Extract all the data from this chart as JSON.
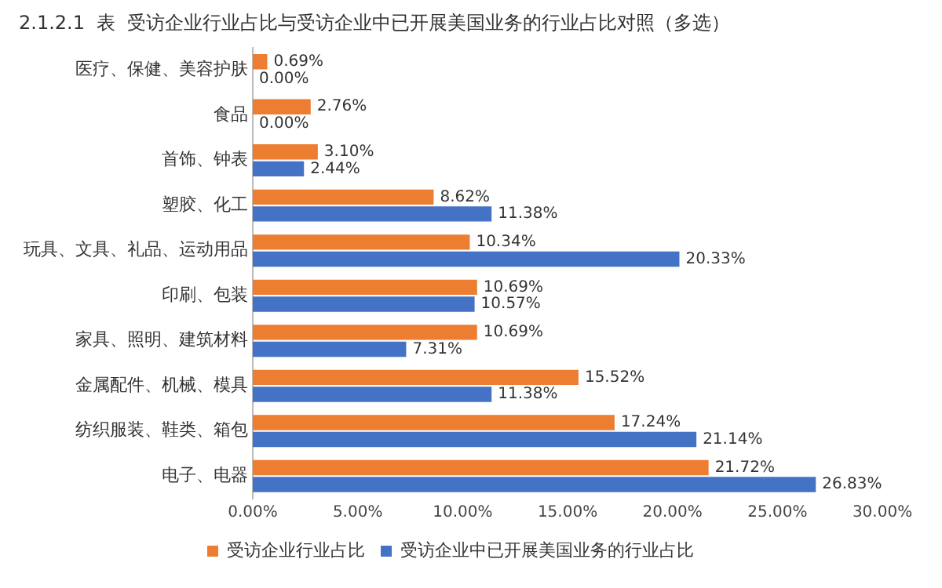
{
  "chart_data": {
    "type": "bar",
    "orientation": "horizontal",
    "title": "2.1.2.1  表  受访企业行业占比与受访企业中已开展美国业务的行业占比对照（多选）",
    "categories": [
      "医疗、保健、美容护肤",
      "食品",
      "首饰、钟表",
      "塑胶、化工",
      "玩具、文具、礼品、运动用品",
      "印刷、包装",
      "家具、照明、建筑材料",
      "金属配件、机械、模具",
      "纺织服装、鞋类、箱包",
      "电子、电器"
    ],
    "series": [
      {
        "name": "受访企业行业占比",
        "color": "#ed7d31",
        "values": [
          0.69,
          2.76,
          3.1,
          8.62,
          10.34,
          10.69,
          10.69,
          15.52,
          17.24,
          21.72
        ],
        "value_labels": [
          "0.69%",
          "2.76%",
          "3.10%",
          "8.62%",
          "10.34%",
          "10.69%",
          "10.69%",
          "15.52%",
          "17.24%",
          "21.72%"
        ]
      },
      {
        "name": "受访企业中已开展美国业务的行业占比",
        "color": "#4472c4",
        "values": [
          0.0,
          0.0,
          2.44,
          11.38,
          20.33,
          10.57,
          7.31,
          11.38,
          21.14,
          26.83
        ],
        "value_labels": [
          "0.00%",
          "0.00%",
          "2.44%",
          "11.38%",
          "20.33%",
          "10.57%",
          "7.31%",
          "11.38%",
          "21.14%",
          "26.83%"
        ]
      }
    ],
    "xlim": [
      0,
      30
    ],
    "xticks": [
      {
        "value": 0,
        "label": "0.00%"
      },
      {
        "value": 5,
        "label": "5.00%"
      },
      {
        "value": 10,
        "label": "10.00%"
      },
      {
        "value": 15,
        "label": "15.00%"
      },
      {
        "value": 20,
        "label": "20.00%"
      },
      {
        "value": 25,
        "label": "25.00%"
      },
      {
        "value": 30,
        "label": "30.00%"
      }
    ],
    "grid": false,
    "legend": "bottom"
  }
}
